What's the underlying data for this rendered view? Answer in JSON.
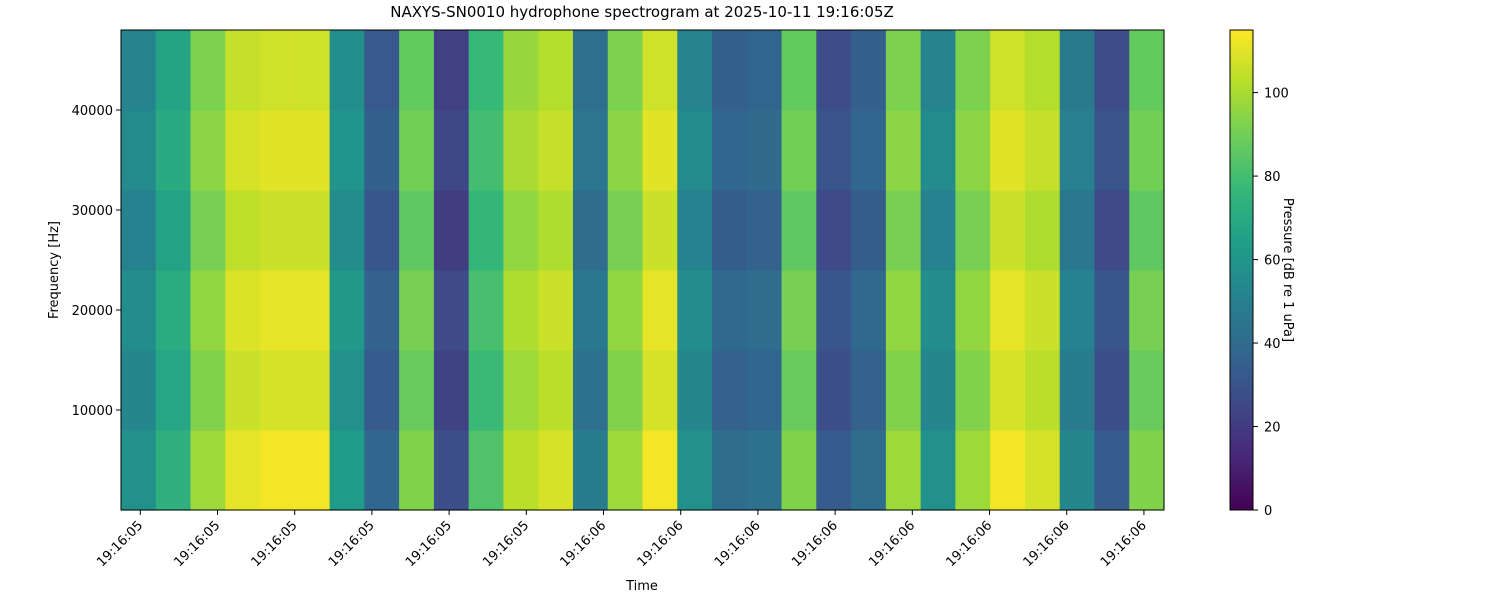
{
  "chart_data": {
    "type": "heatmap",
    "title": "NAXYS-SN0010 hydrophone spectrogram at 2025-10-11 19:16:05Z",
    "x_label": "Time",
    "y_label": "Frequency [Hz]",
    "colorbar_label": "Pressure [dB re 1 uPa]",
    "colormap": "viridis",
    "xlim": [
      5.375,
      6.726
    ],
    "xticks": [
      {
        "value": 5.4,
        "label": "19:16:05"
      },
      {
        "value": 5.5,
        "label": "19:16:05"
      },
      {
        "value": 5.6,
        "label": "19:16:05"
      },
      {
        "value": 5.7,
        "label": "19:16:05"
      },
      {
        "value": 5.8,
        "label": "19:16:05"
      },
      {
        "value": 5.9,
        "label": "19:16:05"
      },
      {
        "value": 6.0,
        "label": "19:16:06"
      },
      {
        "value": 6.1,
        "label": "19:16:06"
      },
      {
        "value": 6.2,
        "label": "19:16:06"
      },
      {
        "value": 6.3,
        "label": "19:16:06"
      },
      {
        "value": 6.4,
        "label": "19:16:06"
      },
      {
        "value": 6.5,
        "label": "19:16:06"
      },
      {
        "value": 6.6,
        "label": "19:16:06"
      },
      {
        "value": 6.7,
        "label": "19:16:06"
      }
    ],
    "ylim": [
      0,
      48000
    ],
    "yticks": [
      10000,
      20000,
      30000,
      40000
    ],
    "clim": [
      0,
      115
    ],
    "cticks": [
      0,
      20,
      40,
      60,
      80,
      100
    ],
    "values": [
      [
        58,
        73,
        98,
        111,
        113,
        113,
        63,
        38,
        93,
        28,
        83,
        103,
        108,
        48,
        98,
        113,
        58,
        41,
        43,
        93,
        33,
        41,
        98,
        58,
        98,
        113,
        108,
        53,
        33,
        93
      ],
      [
        53,
        68,
        93,
        106,
        108,
        108,
        58,
        33,
        88,
        23,
        78,
        98,
        103,
        43,
        93,
        108,
        53,
        36,
        38,
        88,
        28,
        36,
        93,
        53,
        93,
        108,
        103,
        48,
        28,
        88
      ],
      [
        56,
        71,
        96,
        109,
        111,
        111,
        61,
        36,
        91,
        26,
        81,
        101,
        106,
        46,
        96,
        111,
        56,
        39,
        41,
        91,
        31,
        39,
        96,
        56,
        96,
        111,
        106,
        51,
        31,
        91
      ],
      [
        51,
        66,
        91,
        104,
        106,
        106,
        56,
        31,
        86,
        21,
        76,
        96,
        101,
        41,
        91,
        106,
        51,
        34,
        36,
        86,
        26,
        34,
        91,
        51,
        91,
        106,
        101,
        46,
        26,
        86
      ],
      [
        55,
        70,
        95,
        108,
        110,
        110,
        60,
        35,
        90,
        25,
        80,
        100,
        105,
        45,
        95,
        110,
        55,
        38,
        40,
        90,
        30,
        38,
        95,
        55,
        95,
        110,
        105,
        50,
        30,
        90
      ],
      [
        52,
        67,
        92,
        105,
        107,
        107,
        57,
        32,
        87,
        22,
        77,
        97,
        102,
        42,
        92,
        107,
        52,
        35,
        37,
        87,
        27,
        35,
        92,
        52,
        92,
        107,
        102,
        47,
        27,
        87
      ]
    ]
  }
}
